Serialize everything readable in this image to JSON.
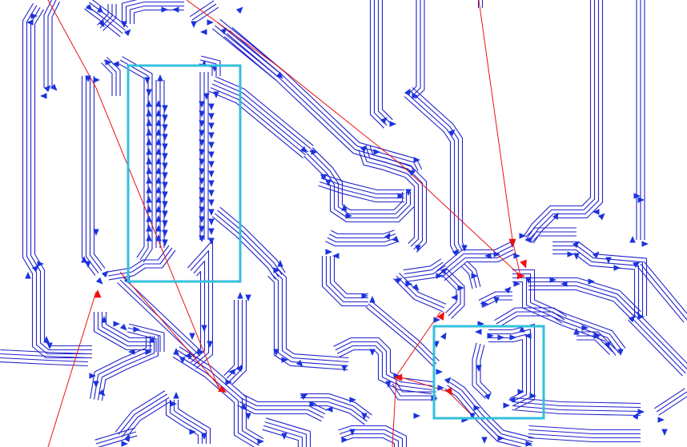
{
  "colors": {
    "background": "#ffffff",
    "wire": "#2222cc",
    "arrow": "#1a33dd",
    "ratsnest": "#ee1111",
    "selection": "#33c0dd"
  },
  "icons": {
    "arrow": "triangle-arrow-icon",
    "red-arrow": "red-triangle-arrow-icon"
  }
}
